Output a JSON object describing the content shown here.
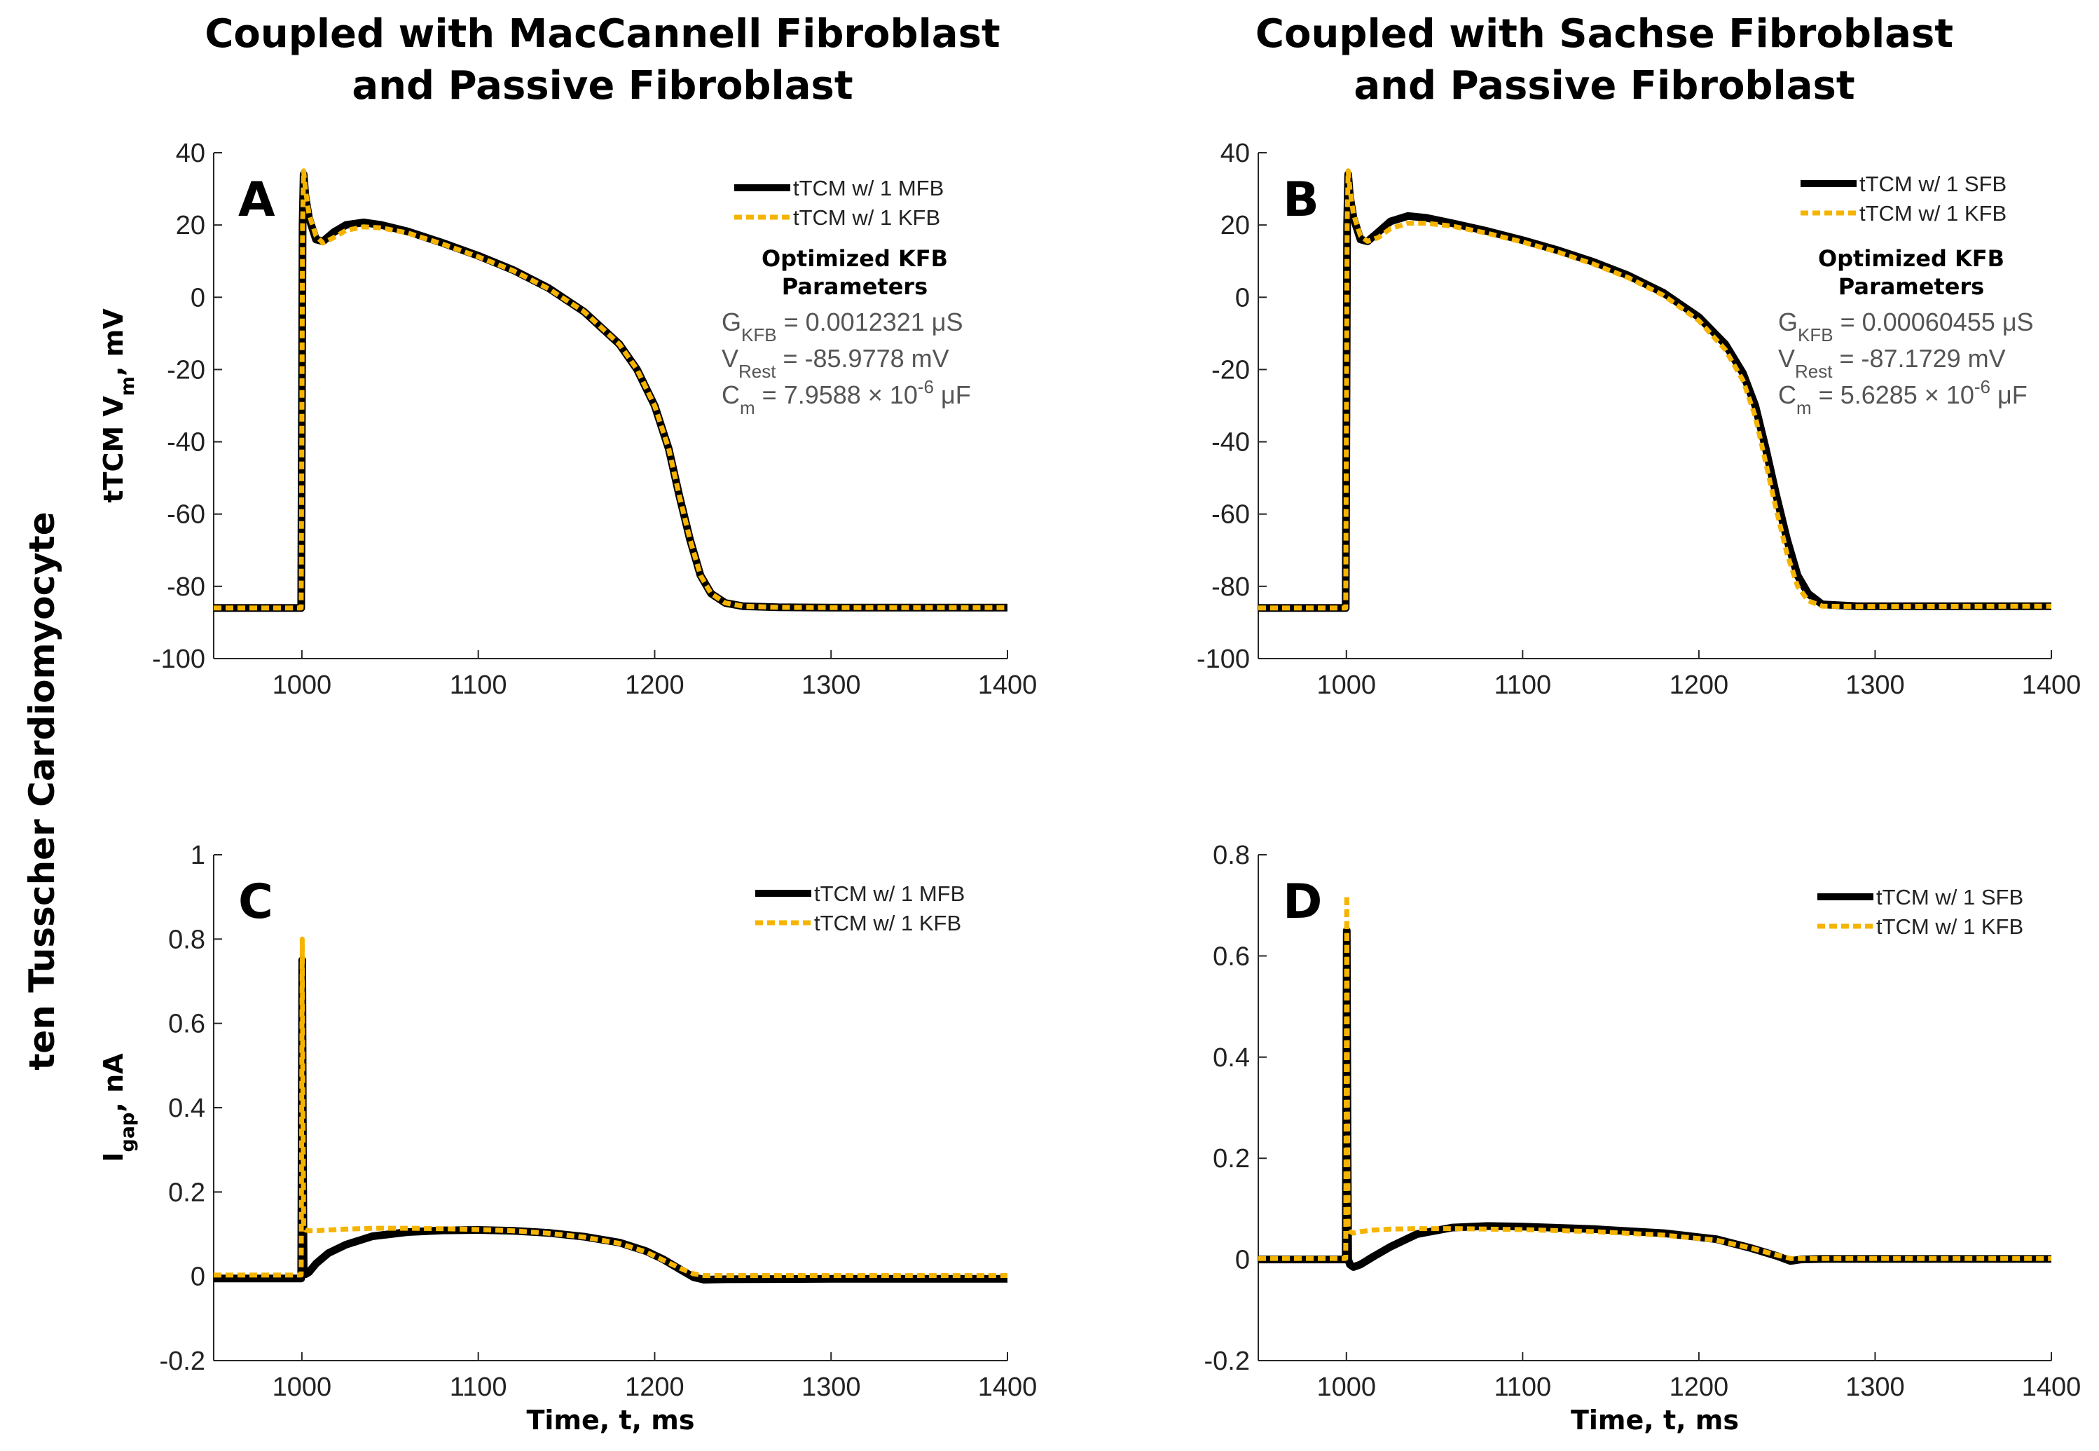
{
  "column_titles": [
    [
      "Coupled with MacCannell Fibroblast",
      "and Passive Fibroblast"
    ],
    [
      "Coupled with Sachse Fibroblast",
      "and Passive Fibroblast"
    ]
  ],
  "row_label": "ten Tusscher Cardiomyocyte",
  "colors": {
    "black_series": "#000000",
    "orange_series": "#F5B400",
    "axis": "#262626"
  },
  "annotation_title": [
    "Optimized KFB",
    "Parameters"
  ],
  "chart_data": [
    {
      "type": "line",
      "panel": "A",
      "xlabel": "",
      "ylabel": "tTCM V_m, mV",
      "xlim": [
        950,
        1400
      ],
      "ylim": [
        -100,
        40
      ],
      "xticks": [
        1000,
        1100,
        1200,
        1300,
        1400
      ],
      "yticks": [
        40,
        20,
        0,
        -20,
        -40,
        -60,
        -80,
        -100
      ],
      "legend": [
        "tTCM w/ 1 MFB",
        "tTCM w/ 1 KFB"
      ],
      "annotation": [
        {
          "sym": "G",
          "sub": "KFB",
          "text": " = 0.0012321 μS"
        },
        {
          "sym": "V",
          "sub": "Rest",
          "text": " = -85.9778 mV"
        },
        {
          "sym": "C",
          "sub": "m",
          "text": " = 7.9588 × 10",
          "sup": "-6",
          "tail": " μF"
        }
      ],
      "series": [
        {
          "name": "tTCM w/ 1 MFB",
          "color": "#000000",
          "x": [
            950,
            999.6,
            1000.4,
            1001,
            1002,
            1004,
            1008,
            1012,
            1018,
            1025,
            1035,
            1045,
            1060,
            1080,
            1100,
            1120,
            1140,
            1160,
            1180,
            1190,
            1200,
            1208,
            1214,
            1220,
            1226,
            1232,
            1240,
            1250,
            1270,
            1300,
            1400
          ],
          "y": [
            -86,
            -86,
            20,
            34,
            28,
            22,
            16,
            15.5,
            18,
            20,
            20.7,
            20,
            18.2,
            15,
            11.5,
            7.5,
            2.5,
            -4,
            -13,
            -20,
            -30,
            -42,
            -55,
            -67,
            -77,
            -82,
            -84.6,
            -85.5,
            -85.8,
            -85.9,
            -85.9
          ]
        },
        {
          "name": "tTCM w/ 1 KFB",
          "color": "#F5B400",
          "x": [
            950,
            999.6,
            1000.4,
            1001,
            1002,
            1004,
            1008,
            1012,
            1018,
            1025,
            1035,
            1045,
            1060,
            1080,
            1100,
            1120,
            1140,
            1160,
            1180,
            1190,
            1200,
            1208,
            1214,
            1220,
            1226,
            1232,
            1240,
            1250,
            1270,
            1300,
            1400
          ],
          "y": [
            -86,
            -86,
            20,
            35,
            30,
            23,
            17,
            15,
            16.5,
            18.5,
            19.5,
            19.2,
            17.8,
            14.7,
            11.2,
            7.3,
            2.3,
            -4,
            -13,
            -20,
            -30,
            -42,
            -55,
            -67,
            -77,
            -82,
            -84.6,
            -85.5,
            -85.8,
            -85.9,
            -85.9
          ]
        }
      ]
    },
    {
      "type": "line",
      "panel": "B",
      "xlabel": "",
      "ylabel": "",
      "xlim": [
        950,
        1400
      ],
      "ylim": [
        -100,
        40
      ],
      "xticks": [
        1000,
        1100,
        1200,
        1300,
        1400
      ],
      "yticks": [
        40,
        20,
        0,
        -20,
        -40,
        -60,
        -80,
        -100
      ],
      "legend": [
        "tTCM w/ 1 SFB",
        "tTCM w/ 1 KFB"
      ],
      "annotation": [
        {
          "sym": "G",
          "sub": "KFB",
          "text": " = 0.00060455 μS"
        },
        {
          "sym": "V",
          "sub": "Rest",
          "text": " = -87.1729 mV"
        },
        {
          "sym": "C",
          "sub": "m",
          "text": " = 5.6285 × 10",
          "sup": "-6",
          "tail": " μF"
        }
      ],
      "series": [
        {
          "name": "tTCM w/ 1 SFB",
          "color": "#000000",
          "x": [
            950,
            999.6,
            1000.4,
            1001,
            1002,
            1004,
            1008,
            1012,
            1018,
            1025,
            1035,
            1045,
            1060,
            1080,
            1100,
            1120,
            1140,
            1160,
            1180,
            1200,
            1215,
            1225,
            1232,
            1238,
            1244,
            1250,
            1256,
            1262,
            1270,
            1290,
            1400
          ],
          "y": [
            -86,
            -86,
            20,
            34,
            28,
            22,
            16,
            15.5,
            18,
            21,
            22.5,
            22,
            20.5,
            18.3,
            15.8,
            13,
            9.8,
            6,
            1.2,
            -5.5,
            -13,
            -21,
            -30,
            -42,
            -55,
            -67,
            -77,
            -82,
            -85,
            -85.5,
            -85.5
          ]
        },
        {
          "name": "tTCM w/ 1 KFB",
          "color": "#F5B400",
          "x": [
            950,
            999.6,
            1000.4,
            1001,
            1002,
            1004,
            1008,
            1012,
            1018,
            1025,
            1035,
            1045,
            1060,
            1080,
            1100,
            1120,
            1140,
            1160,
            1180,
            1200,
            1215,
            1225,
            1232,
            1238,
            1244,
            1250,
            1256,
            1262,
            1270,
            1290,
            1400
          ],
          "y": [
            -86,
            -86,
            20,
            35,
            30,
            23,
            17,
            15.5,
            16.5,
            19,
            20.5,
            20.5,
            19.7,
            17.7,
            15.3,
            12.5,
            9.2,
            5.4,
            0.5,
            -6.5,
            -14.5,
            -23,
            -33,
            -46,
            -59,
            -71,
            -80,
            -84,
            -85.5,
            -85.6,
            -85.5
          ]
        }
      ]
    },
    {
      "type": "line",
      "panel": "C",
      "xlabel": "Time, t, ms",
      "ylabel": "I_gap, nA",
      "xlim": [
        950,
        1400
      ],
      "ylim": [
        -0.2,
        1
      ],
      "xticks": [
        1000,
        1100,
        1200,
        1300,
        1400
      ],
      "yticks": [
        1,
        0.8,
        0.6,
        0.4,
        0.2,
        0,
        -0.2
      ],
      "legend": [
        "tTCM w/ 1 MFB",
        "tTCM w/ 1 KFB"
      ],
      "series": [
        {
          "name": "tTCM w/ 1 MFB",
          "color": "#000000",
          "x": [
            950,
            999.6,
            1000.2,
            1000.6,
            1001,
            1002,
            1004,
            1008,
            1015,
            1025,
            1040,
            1060,
            1080,
            1100,
            1120,
            1140,
            1160,
            1180,
            1195,
            1205,
            1215,
            1222,
            1228,
            1240,
            1300,
            1400
          ],
          "y": [
            -0.005,
            -0.005,
            0.75,
            0.3,
            0.02,
            0.005,
            0.01,
            0.03,
            0.055,
            0.075,
            0.095,
            0.105,
            0.109,
            0.11,
            0.108,
            0.103,
            0.094,
            0.08,
            0.06,
            0.04,
            0.015,
            -0.002,
            -0.008,
            -0.007,
            -0.006,
            -0.006
          ]
        },
        {
          "name": "tTCM w/ 1 KFB",
          "color": "#F5B400",
          "x": [
            950,
            999.6,
            1000.2,
            1000.6,
            1001,
            1002,
            1004,
            1008,
            1015,
            1025,
            1040,
            1060,
            1080,
            1100,
            1120,
            1140,
            1160,
            1180,
            1195,
            1205,
            1215,
            1222,
            1228,
            1240,
            1300,
            1400
          ],
          "y": [
            0.003,
            0.003,
            0.8,
            0.4,
            0.115,
            0.11,
            0.108,
            0.108,
            0.11,
            0.112,
            0.114,
            0.114,
            0.113,
            0.111,
            0.108,
            0.102,
            0.093,
            0.078,
            0.058,
            0.038,
            0.018,
            0.006,
            0.002,
            0.002,
            0.002,
            0.002
          ]
        }
      ]
    },
    {
      "type": "line",
      "panel": "D",
      "xlabel": "Time, t, ms",
      "ylabel": "",
      "xlim": [
        950,
        1400
      ],
      "ylim": [
        -0.2,
        0.8
      ],
      "xticks": [
        1000,
        1100,
        1200,
        1300,
        1400
      ],
      "yticks": [
        0.8,
        0.6,
        0.4,
        0.2,
        0,
        -0.2
      ],
      "legend": [
        "tTCM w/ 1 SFB",
        "tTCM w/ 1 KFB"
      ],
      "series": [
        {
          "name": "tTCM w/ 1 SFB",
          "color": "#000000",
          "x": [
            950,
            999.6,
            1000.2,
            1000.6,
            1001,
            1002,
            1004,
            1008,
            1015,
            1025,
            1040,
            1060,
            1080,
            1100,
            1140,
            1180,
            1210,
            1230,
            1245,
            1252,
            1258,
            1270,
            1300,
            1400
          ],
          "y": [
            0,
            0,
            0.65,
            0.25,
            0.0,
            -0.01,
            -0.015,
            -0.01,
            0.005,
            0.025,
            0.05,
            0.063,
            0.066,
            0.065,
            0.06,
            0.052,
            0.04,
            0.022,
            0.006,
            -0.003,
            0.0,
            0.001,
            0.001,
            0.001
          ]
        },
        {
          "name": "tTCM w/ 1 KFB",
          "color": "#F5B400",
          "x": [
            950,
            999.6,
            1000.2,
            1000.6,
            1001,
            1002,
            1004,
            1008,
            1015,
            1025,
            1040,
            1060,
            1080,
            1100,
            1140,
            1180,
            1210,
            1230,
            1245,
            1252,
            1258,
            1270,
            1300,
            1400
          ],
          "y": [
            0.002,
            0.002,
            0.72,
            0.3,
            0.06,
            0.055,
            0.052,
            0.055,
            0.058,
            0.06,
            0.061,
            0.061,
            0.06,
            0.059,
            0.055,
            0.048,
            0.038,
            0.022,
            0.008,
            0.002,
            0.002,
            0.002,
            0.002,
            0.002
          ]
        }
      ]
    }
  ]
}
